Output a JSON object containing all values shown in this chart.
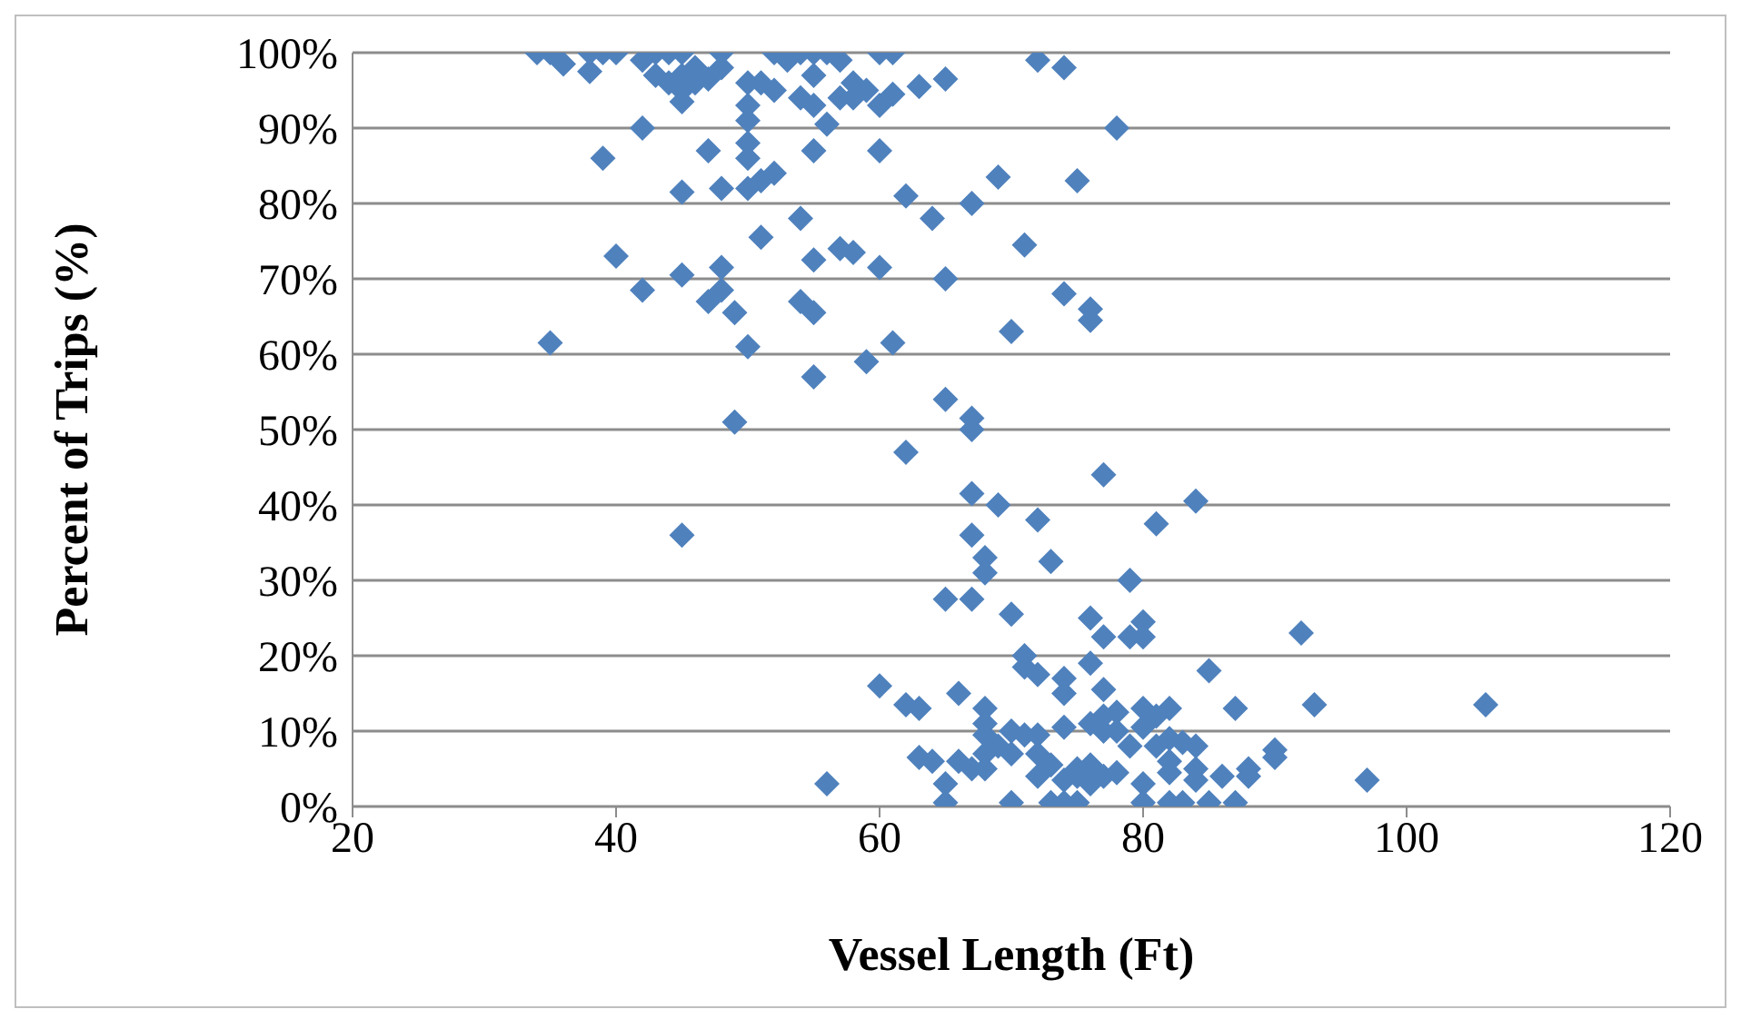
{
  "chart_data": {
    "type": "scatter",
    "xlabel": "Vessel Length (Ft)",
    "ylabel": "Percent of Trips (%)",
    "xlim": [
      20,
      120
    ],
    "xticks": [
      20,
      40,
      60,
      80,
      100,
      120
    ],
    "ylim": [
      0,
      100
    ],
    "yticks": [
      {
        "value": 0,
        "label": "0%"
      },
      {
        "value": 10,
        "label": "10%"
      },
      {
        "value": 20,
        "label": "20%"
      },
      {
        "value": 30,
        "label": "30%"
      },
      {
        "value": 40,
        "label": "40%"
      },
      {
        "value": 50,
        "label": "50%"
      },
      {
        "value": 60,
        "label": "60%"
      },
      {
        "value": 70,
        "label": "70%"
      },
      {
        "value": 80,
        "label": "80%"
      },
      {
        "value": 90,
        "label": "90%"
      },
      {
        "value": 100,
        "label": "100%"
      }
    ],
    "grid": "y",
    "legend": false,
    "marker": "diamond",
    "series": [
      {
        "color": "#4f81bd",
        "x": [
          34,
          35,
          36,
          38,
          38,
          39,
          40,
          42,
          43,
          43,
          44,
          44,
          45,
          45,
          45,
          45,
          46,
          46,
          47,
          48,
          48,
          50,
          50,
          50,
          51,
          52,
          52,
          53,
          54,
          54,
          55,
          55,
          55,
          56,
          56,
          57,
          57,
          58,
          59,
          60,
          60,
          61,
          61,
          63,
          65,
          72,
          74,
          39,
          42,
          47,
          45,
          48,
          50,
          50,
          50,
          51,
          52,
          55,
          58,
          60,
          62,
          64,
          67,
          69,
          75,
          78,
          40,
          42,
          45,
          47,
          48,
          48,
          49,
          51,
          54,
          54,
          55,
          55,
          57,
          58,
          60,
          71,
          74,
          76,
          76,
          35,
          50,
          55,
          59,
          61,
          65,
          70,
          49,
          65,
          67,
          67,
          62,
          45,
          67,
          69,
          77,
          81,
          84,
          72,
          67,
          68,
          68,
          73,
          65,
          67,
          70,
          76,
          79,
          80,
          79,
          80,
          77,
          92,
          60,
          66,
          71,
          71,
          72,
          74,
          74,
          76,
          77,
          78,
          77,
          85,
          80,
          82,
          87,
          93,
          106,
          62,
          63,
          68,
          68,
          68,
          70,
          71,
          72,
          74,
          76,
          77,
          78,
          80,
          81,
          81,
          82,
          83,
          84,
          79,
          63,
          64,
          66,
          68,
          69,
          70,
          72,
          73,
          75,
          75,
          76,
          77,
          78,
          80,
          82,
          82,
          84,
          84,
          86,
          88,
          88,
          90,
          90,
          97,
          56,
          65,
          67,
          68,
          72,
          74,
          76,
          65,
          70,
          73,
          74,
          75,
          80,
          82,
          83,
          85,
          87
        ],
        "values": [
          100,
          100,
          98.5,
          97.5,
          100,
          100,
          100,
          99,
          97,
          100,
          96,
          100,
          95,
          97,
          93.5,
          100,
          96,
          98,
          96.5,
          100,
          98,
          96,
          93,
          91,
          96,
          100,
          95,
          99,
          94,
          100,
          93,
          97,
          100,
          90.5,
          100,
          94,
          99,
          94,
          95,
          93,
          100,
          94.5,
          100,
          95.5,
          96.5,
          99,
          98,
          86,
          90,
          87,
          81.5,
          82,
          88,
          86,
          82,
          83,
          84,
          87,
          96,
          87,
          81,
          78,
          80,
          83.5,
          83,
          90,
          73,
          68.5,
          70.5,
          67,
          68.5,
          71.5,
          65.5,
          75.5,
          78,
          67,
          72.5,
          65.5,
          74,
          73.5,
          71.5,
          74.5,
          68,
          66,
          64.5,
          61.5,
          61,
          57,
          59,
          61.5,
          70,
          63,
          51,
          54,
          51.5,
          50,
          47,
          36,
          41.5,
          40,
          44,
          37.5,
          40.5,
          38,
          36,
          33,
          31,
          32.5,
          27.5,
          27.5,
          25.5,
          25,
          30,
          24.5,
          22.5,
          22.5,
          22.5,
          23,
          16,
          15,
          20,
          18.5,
          17.5,
          17,
          15,
          19,
          15.5,
          12.5,
          12,
          18,
          13,
          13,
          13,
          13.5,
          13.5,
          13.5,
          13,
          13,
          11,
          9.5,
          10,
          9.5,
          9.5,
          10.5,
          11,
          10,
          10,
          10.5,
          12,
          8,
          9,
          8.5,
          8,
          8,
          6.5,
          6,
          6,
          7,
          8,
          7,
          7,
          5.5,
          5,
          4,
          5.5,
          4,
          4.5,
          3,
          4.5,
          6,
          3.5,
          5,
          4,
          5,
          4,
          7.5,
          6.5,
          3.5,
          3,
          3,
          5,
          5,
          4,
          3.5,
          3,
          0.5,
          0.5,
          0.5,
          0.5,
          0.5,
          0.5,
          0.5,
          0.5,
          0.5,
          0.5
        ]
      }
    ]
  }
}
